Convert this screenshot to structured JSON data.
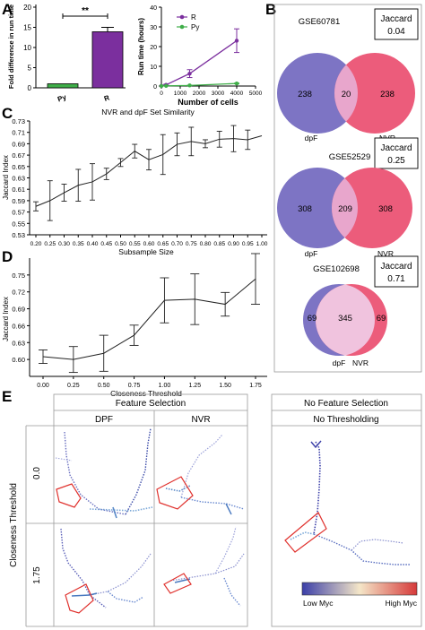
{
  "colors": {
    "purple": "#7b2f9e",
    "green": "#3fae49",
    "venn_left_238": "#7d74c4",
    "venn_right": "#ec5c7b",
    "venn_left_308": "#7d74c4",
    "venn_overlap": "#e8a6cc",
    "venn_overlap_2": "#f0c3de",
    "cmap_low": "#3b3fa8",
    "cmap_mid": "#f4e6c8",
    "cmap_high": "#d63a3a",
    "highlight": "#e0322e",
    "panel_b_border": "#999999"
  },
  "panel_labels": {
    "a": "A",
    "b": "B",
    "c": "C",
    "d": "D",
    "e": "E"
  },
  "chart_data": [
    {
      "id": "A-left",
      "type": "bar",
      "categories": [
        "Py",
        "R"
      ],
      "values": [
        1.0,
        13.9
      ],
      "errors": [
        0.0,
        1.1
      ],
      "colors": [
        "#3fae49",
        "#7b2f9e"
      ],
      "ylabel": "Fold difference in run time",
      "ylim": [
        0,
        20
      ],
      "yticks": [
        0,
        5,
        10,
        15,
        20
      ],
      "significance": "**"
    },
    {
      "id": "A-right",
      "type": "line",
      "xlabel": "Number of cells",
      "ylabel": "Run time (hours)",
      "xlim": [
        0,
        5000
      ],
      "ylim": [
        0,
        40
      ],
      "xticks": [
        0,
        1000,
        2000,
        3000,
        4000,
        5000
      ],
      "yticks": [
        0,
        10,
        20,
        30,
        40
      ],
      "legend_position": "top-left",
      "series": [
        {
          "name": "R",
          "color": "#7b2f9e",
          "x": [
            0,
            250,
            1500,
            4000
          ],
          "y": [
            0.1,
            0.6,
            6.3,
            23.0
          ],
          "err": [
            0,
            0.3,
            2.0,
            6.0
          ]
        },
        {
          "name": "Py",
          "color": "#3fae49",
          "x": [
            0,
            250,
            1500,
            4000
          ],
          "y": [
            0.05,
            0.1,
            0.3,
            1.3
          ],
          "err": [
            0,
            0,
            0.1,
            0.2
          ]
        }
      ]
    },
    {
      "id": "C",
      "type": "line",
      "title": "NVR and dpF Set Similarity",
      "xlabel": "Subsample Size",
      "ylabel": "Jaccard Index",
      "ylim": [
        0.53,
        0.73
      ],
      "yticks": [
        0.53,
        0.55,
        0.57,
        0.59,
        0.61,
        0.63,
        0.65,
        0.67,
        0.69,
        0.71,
        0.73
      ],
      "x": [
        0.2,
        0.25,
        0.3,
        0.35,
        0.4,
        0.45,
        0.5,
        0.55,
        0.6,
        0.65,
        0.7,
        0.75,
        0.8,
        0.85,
        0.9,
        0.95,
        1.0
      ],
      "y": [
        0.58,
        0.59,
        0.604,
        0.617,
        0.623,
        0.637,
        0.657,
        0.677,
        0.662,
        0.671,
        0.689,
        0.694,
        0.69,
        0.698,
        0.699,
        0.697,
        0.704
      ],
      "err": [
        0.008,
        0.035,
        0.015,
        0.028,
        0.032,
        0.01,
        0.007,
        0.012,
        0.018,
        0.035,
        0.02,
        0.025,
        0.007,
        0.014,
        0.023,
        0.017,
        0
      ],
      "xticklabels": [
        "0.20",
        "0.25",
        "0.30",
        "0.35",
        "0.40",
        "0.45",
        "0.50",
        "0.55",
        "0.60",
        "0.65",
        "0.70",
        "0.75",
        "0.80",
        "0.85",
        "0.90",
        "0.95",
        "1.00"
      ]
    },
    {
      "id": "D",
      "type": "line",
      "xlabel": "Closeness Threshold",
      "ylabel": "Jaccard Index",
      "ylim": [
        0.57,
        0.78
      ],
      "yticks": [
        0.6,
        0.63,
        0.66,
        0.69,
        0.72,
        0.75
      ],
      "x": [
        0,
        0.25,
        0.5,
        0.75,
        1.0,
        1.25,
        1.5,
        1.75
      ],
      "y": [
        0.605,
        0.6,
        0.611,
        0.643,
        0.705,
        0.707,
        0.698,
        0.743
      ],
      "err": [
        0.012,
        0.023,
        0.032,
        0.018,
        0.04,
        0.045,
        0.021,
        0.045
      ],
      "xticklabels": [
        "0.00",
        "0.25",
        "0.50",
        "0.75",
        "1.00",
        "1.25",
        "1.50",
        "1.75"
      ]
    },
    {
      "id": "B-venns",
      "type": "venn",
      "items": [
        {
          "dataset": "GSE60781",
          "jaccard_label": "Jaccard",
          "jaccard": "0.04",
          "left": 238,
          "overlap": 20,
          "right": 238,
          "left_label": "dpF",
          "right_label": "NVR"
        },
        {
          "dataset": "GSE52529",
          "jaccard_label": "Jaccard",
          "jaccard": "0.25",
          "left": 308,
          "overlap": 209,
          "right": 308,
          "left_label": "dpF",
          "right_label": "NVR"
        },
        {
          "dataset": "GSE102698",
          "jaccard_label": "Jaccard",
          "jaccard": "0.71",
          "left": 69,
          "overlap": 345,
          "right": 69,
          "left_label": "dpF",
          "right_label": "NVR"
        }
      ]
    }
  ],
  "panel_e": {
    "group_feature": "Feature Selection",
    "group_no_feature": "No Feature Selection",
    "col_dpf": "DPF",
    "col_nvr": "NVR",
    "col_no_thresh": "No Thresholding",
    "row_axis": "Closeness Threshold",
    "row_0": "0.0",
    "row_1": "1.75",
    "colorbar_low": "Low Myc",
    "colorbar_high": "High Myc"
  }
}
